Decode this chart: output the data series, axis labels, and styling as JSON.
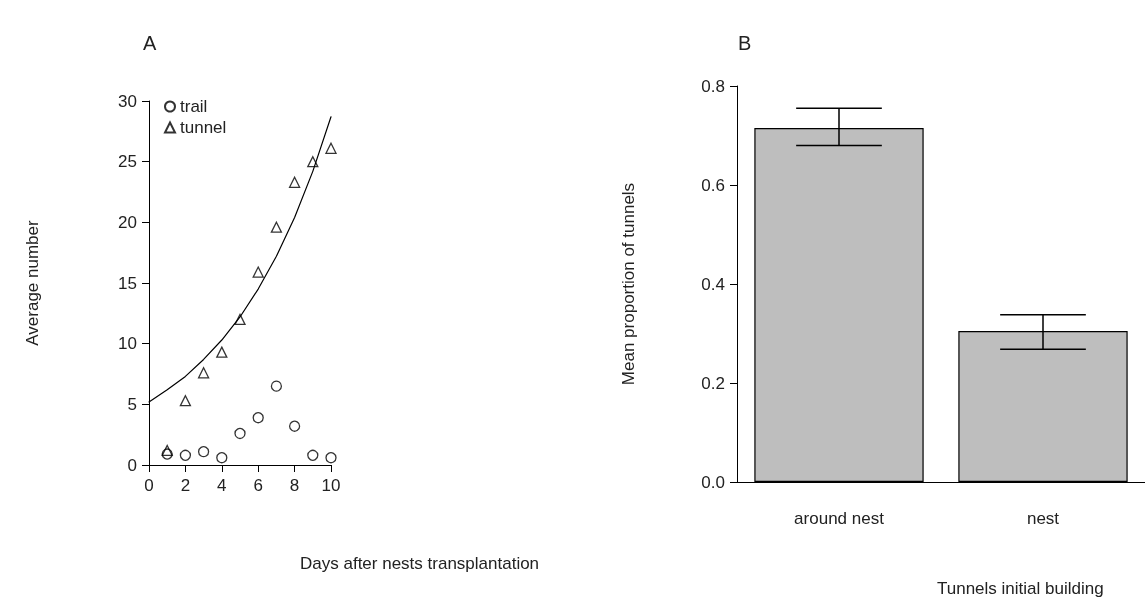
{
  "chart_data": [
    {
      "type": "scatter",
      "title": "A",
      "xlabel": "Days after nests transplantation",
      "ylabel": "Average number",
      "x": [
        1,
        2,
        3,
        4,
        5,
        6,
        7,
        8,
        9,
        10
      ],
      "xlim": [
        0,
        10
      ],
      "xticks": [
        0,
        2,
        4,
        6,
        8,
        10
      ],
      "ylim": [
        0,
        30
      ],
      "yticks": [
        0,
        5,
        10,
        15,
        20,
        25,
        30
      ],
      "legend": "top left",
      "series": [
        {
          "name": "trail",
          "color": "#000000",
          "marker": "circle",
          "values": [
            0.9,
            0.8,
            1.1,
            0.6,
            2.6,
            3.9,
            6.5,
            3.2,
            0.8,
            0.6
          ]
        },
        {
          "name": "tunnel",
          "color": "#000000",
          "marker": "triangle",
          "values": [
            1.2,
            5.3,
            7.6,
            9.3,
            12.0,
            15.9,
            19.6,
            23.3,
            25.0,
            26.1
          ]
        },
        {
          "type": "line",
          "color": "#000000",
          "marker": "none",
          "line_style": "solid",
          "x": [
            0,
            1,
            2,
            3,
            4,
            5,
            6,
            7,
            8,
            9,
            10
          ],
          "values": [
            5.2,
            6.2,
            7.3,
            8.7,
            10.3,
            12.2,
            14.5,
            17.2,
            20.4,
            24.2,
            28.7
          ]
        }
      ]
    },
    {
      "type": "bar",
      "title": "B",
      "xlabel": "Tunnels initial building",
      "ylabel": "Mean proportion of tunnels",
      "categories": [
        "around nest",
        "nest"
      ],
      "values": [
        0.715,
        0.305
      ],
      "color": "#bebebe",
      "errors": [
        [
          0.68,
          0.755
        ],
        [
          0.268,
          0.338
        ]
      ],
      "ylim": [
        0,
        0.8
      ],
      "yticks": [
        {
          "value": 0,
          "label": "0.0"
        },
        0.2,
        0.4,
        0.6,
        0.8
      ]
    }
  ]
}
